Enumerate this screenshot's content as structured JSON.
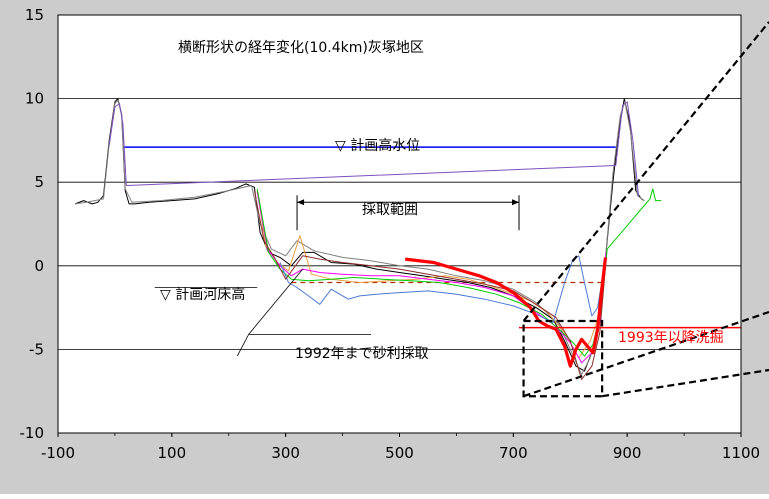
{
  "chart_data": {
    "type": "line",
    "title": "横断形状の経年変化(10.4km)灰塚地区",
    "xlabel": "",
    "ylabel": "",
    "xlim": [
      -100,
      1100
    ],
    "ylim": [
      -10,
      15
    ],
    "x_ticks": [
      "-100",
      "100",
      "300",
      "500",
      "700",
      "900",
      "1100"
    ],
    "y_ticks": [
      "-10",
      "-5",
      "0",
      "5",
      "10",
      "15"
    ],
    "grid": "horizontal",
    "annotations": {
      "hwl": "▽ 計画高水位",
      "bed": "▽ 計画河床高",
      "range": "採取範囲",
      "mining": "1992年まで砂利採取",
      "scour": "1993年以降洗掘"
    },
    "reference_lines": {
      "planned_high_water_level": 7.1,
      "planned_riverbed_height": -1.0,
      "mining_range_x": [
        320,
        710
      ],
      "mining_range_y": 3.8
    },
    "colors": {
      "hwl": "#0000ff",
      "bed": "#b03000",
      "scour": "#ff0000",
      "frame": "#cccccc"
    },
    "series": [
      {
        "color": "#000000",
        "points": [
          [
            -70,
            3.7
          ],
          [
            -55,
            3.9
          ],
          [
            -40,
            3.7
          ],
          [
            -30,
            3.8
          ],
          [
            -20,
            4.2
          ],
          [
            -10,
            7.5
          ],
          [
            0,
            9.8
          ],
          [
            5,
            10.0
          ],
          [
            12,
            9.0
          ],
          [
            18,
            4.5
          ],
          [
            25,
            3.7
          ],
          [
            35,
            3.7
          ],
          [
            60,
            3.8
          ],
          [
            100,
            3.9
          ],
          [
            140,
            4.0
          ],
          [
            180,
            4.3
          ],
          [
            210,
            4.6
          ],
          [
            230,
            4.9
          ],
          [
            245,
            4.7
          ],
          [
            255,
            2.0
          ],
          [
            270,
            0.8
          ],
          [
            290,
            0.5
          ],
          [
            310,
            0.0
          ],
          [
            330,
            0.8
          ],
          [
            350,
            0.8
          ],
          [
            380,
            0.2
          ],
          [
            420,
            0.1
          ],
          [
            460,
            -0.2
          ],
          [
            500,
            -0.4
          ],
          [
            540,
            -0.6
          ],
          [
            580,
            -0.8
          ],
          [
            620,
            -1.0
          ],
          [
            660,
            -1.3
          ],
          [
            700,
            -1.8
          ],
          [
            740,
            -2.5
          ],
          [
            770,
            -3.2
          ],
          [
            790,
            -4.5
          ],
          [
            810,
            -6.0
          ],
          [
            825,
            -6.3
          ],
          [
            840,
            -5.0
          ],
          [
            855,
            -2.0
          ],
          [
            865,
            1.5
          ],
          [
            875,
            5.0
          ],
          [
            885,
            8.0
          ],
          [
            895,
            10.0
          ],
          [
            905,
            8.5
          ],
          [
            915,
            4.5
          ],
          [
            925,
            4.0
          ],
          [
            930,
            3.9
          ]
        ]
      },
      {
        "color": "#808080",
        "points": [
          [
            -70,
            3.7
          ],
          [
            -50,
            3.8
          ],
          [
            -20,
            4.0
          ],
          [
            -10,
            7.3
          ],
          [
            0,
            9.7
          ],
          [
            5,
            9.9
          ],
          [
            12,
            9.1
          ],
          [
            18,
            4.6
          ],
          [
            30,
            3.8
          ],
          [
            80,
            3.9
          ],
          [
            140,
            4.1
          ],
          [
            200,
            4.5
          ],
          [
            240,
            4.8
          ],
          [
            255,
            2.5
          ],
          [
            275,
            1.0
          ],
          [
            300,
            0.6
          ],
          [
            320,
            1.5
          ],
          [
            350,
            0.9
          ],
          [
            400,
            0.5
          ],
          [
            450,
            0.3
          ],
          [
            500,
            0.0
          ],
          [
            550,
            -0.2
          ],
          [
            600,
            -0.6
          ],
          [
            650,
            -0.9
          ],
          [
            700,
            -1.4
          ],
          [
            740,
            -2.2
          ],
          [
            780,
            -3.5
          ],
          [
            800,
            -5.0
          ],
          [
            820,
            -6.5
          ],
          [
            835,
            -5.5
          ],
          [
            850,
            -3.5
          ],
          [
            862,
            0.5
          ],
          [
            875,
            5.5
          ],
          [
            888,
            9.0
          ],
          [
            896,
            9.8
          ],
          [
            906,
            8.0
          ],
          [
            918,
            4.2
          ],
          [
            930,
            3.9
          ]
        ]
      },
      {
        "color": "#e8a040",
        "points": [
          [
            250,
            4.5
          ],
          [
            265,
            1.2
          ],
          [
            285,
            0.2
          ],
          [
            305,
            -0.3
          ],
          [
            325,
            1.8
          ],
          [
            345,
            -0.5
          ],
          [
            380,
            -0.8
          ],
          [
            430,
            -1.0
          ],
          [
            480,
            -0.9
          ],
          [
            530,
            -0.8
          ],
          [
            580,
            -0.6
          ],
          [
            620,
            -0.8
          ],
          [
            660,
            -1.2
          ],
          [
            700,
            -1.7
          ],
          [
            730,
            -2.1
          ],
          [
            760,
            -2.8
          ],
          [
            790,
            -4.0
          ],
          [
            815,
            -5.5
          ],
          [
            835,
            -4.5
          ],
          [
            850,
            -3.0
          ],
          [
            862,
            0.0
          ]
        ]
      },
      {
        "color": "#ff00ff",
        "points": [
          [
            250,
            4.4
          ],
          [
            268,
            1.0
          ],
          [
            290,
            0.0
          ],
          [
            310,
            -0.6
          ],
          [
            330,
            -0.2
          ],
          [
            360,
            -0.4
          ],
          [
            400,
            -0.5
          ],
          [
            450,
            -0.6
          ],
          [
            500,
            -0.6
          ],
          [
            550,
            -0.8
          ],
          [
            600,
            -1.0
          ],
          [
            650,
            -1.3
          ],
          [
            700,
            -1.8
          ],
          [
            740,
            -2.8
          ],
          [
            770,
            -3.5
          ],
          [
            800,
            -4.6
          ],
          [
            820,
            -5.8
          ],
          [
            838,
            -5.2
          ],
          [
            852,
            -3.4
          ],
          [
            863,
            0.8
          ]
        ]
      },
      {
        "color": "#00cc00",
        "points": [
          [
            250,
            4.6
          ],
          [
            270,
            0.8
          ],
          [
            290,
            -0.2
          ],
          [
            310,
            -0.8
          ],
          [
            340,
            -0.9
          ],
          [
            380,
            -0.8
          ],
          [
            420,
            -0.7
          ],
          [
            470,
            -0.8
          ],
          [
            520,
            -0.9
          ],
          [
            570,
            -1.0
          ],
          [
            620,
            -1.3
          ],
          [
            670,
            -1.7
          ],
          [
            710,
            -2.2
          ],
          [
            750,
            -2.9
          ],
          [
            780,
            -3.8
          ],
          [
            805,
            -4.6
          ],
          [
            825,
            -5.4
          ],
          [
            840,
            -4.7
          ],
          [
            855,
            -2.5
          ],
          [
            865,
            1.0
          ],
          [
            940,
            4.0
          ],
          [
            945,
            4.6
          ],
          [
            950,
            3.9
          ],
          [
            960,
            3.9
          ]
        ]
      },
      {
        "color": "#4a7ad8",
        "points": [
          [
            290,
            0.2
          ],
          [
            305,
            -1.0
          ],
          [
            320,
            -1.3
          ],
          [
            340,
            -1.8
          ],
          [
            360,
            -2.3
          ],
          [
            380,
            -1.4
          ],
          [
            410,
            -2.0
          ],
          [
            430,
            -1.8
          ],
          [
            460,
            -1.7
          ],
          [
            500,
            -1.6
          ],
          [
            550,
            -1.5
          ],
          [
            600,
            -1.7
          ],
          [
            650,
            -2.0
          ],
          [
            700,
            -2.4
          ],
          [
            740,
            -2.9
          ],
          [
            770,
            -3.4
          ],
          [
            790,
            -1.0
          ],
          [
            805,
            0.4
          ],
          [
            815,
            0.6
          ],
          [
            825,
            -1.0
          ],
          [
            838,
            -3.0
          ],
          [
            848,
            -2.5
          ],
          [
            860,
            0.0
          ]
        ]
      },
      {
        "color": "#7f4fbf",
        "points": [
          [
            -10,
            7.2
          ],
          [
            0,
            9.5
          ],
          [
            8,
            9.7
          ],
          [
            14,
            8.5
          ],
          [
            20,
            4.8
          ],
          [
            880,
            6.0
          ],
          [
            892,
            9.6
          ],
          [
            900,
            9.8
          ],
          [
            910,
            7.5
          ],
          [
            920,
            4.2
          ]
        ]
      },
      {
        "color": "#8b2e2e",
        "points": [
          [
            245,
            4.5
          ],
          [
            262,
            1.5
          ],
          [
            280,
            0.5
          ],
          [
            300,
            -0.8
          ],
          [
            330,
            0.6
          ],
          [
            360,
            0.4
          ],
          [
            400,
            0.2
          ],
          [
            450,
            0.0
          ],
          [
            500,
            -0.2
          ],
          [
            550,
            -0.5
          ],
          [
            600,
            -0.8
          ],
          [
            650,
            -1.1
          ],
          [
            700,
            -1.5
          ],
          [
            740,
            -2.3
          ],
          [
            775,
            -3.1
          ],
          [
            800,
            -4.5
          ],
          [
            820,
            -6.8
          ],
          [
            838,
            -6.0
          ],
          [
            852,
            -4.0
          ],
          [
            862,
            0.0
          ]
        ]
      },
      {
        "color": "#ff0000",
        "bold": true,
        "points": [
          [
            510,
            0.4
          ],
          [
            560,
            0.2
          ],
          [
            600,
            -0.2
          ],
          [
            640,
            -0.6
          ],
          [
            670,
            -1.0
          ],
          [
            700,
            -1.6
          ],
          [
            730,
            -2.5
          ],
          [
            745,
            -3.3
          ],
          [
            760,
            -3.6
          ],
          [
            775,
            -3.8
          ],
          [
            790,
            -4.8
          ],
          [
            800,
            -6.0
          ],
          [
            810,
            -5.0
          ],
          [
            820,
            -4.4
          ],
          [
            830,
            -4.8
          ],
          [
            840,
            -5.2
          ],
          [
            848,
            -3.8
          ],
          [
            855,
            -1.5
          ],
          [
            862,
            0.5
          ]
        ]
      }
    ]
  }
}
